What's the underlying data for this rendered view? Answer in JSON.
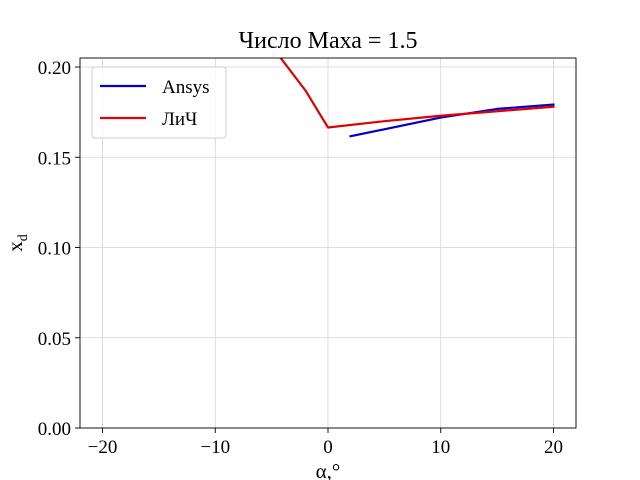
{
  "chart_data": {
    "type": "line",
    "title": "Число Маха = 1.5",
    "xlabel": "α,°",
    "ylabel": "x",
    "ylabel_subscript": "d",
    "xlim": [
      -22,
      22
    ],
    "ylim": [
      0.0,
      0.205
    ],
    "xticks": [
      -20,
      -10,
      0,
      10,
      20
    ],
    "yticks": [
      0.0,
      0.05,
      0.1,
      0.15,
      0.2
    ],
    "xtick_labels": [
      "−20",
      "−10",
      "0",
      "10",
      "20"
    ],
    "ytick_labels": [
      "0.00",
      "0.05",
      "0.10",
      "0.15",
      "0.20"
    ],
    "grid": true,
    "legend_position": "top-left",
    "series": [
      {
        "name": "Ansys",
        "color": "#0000cc",
        "x": [
          2,
          5,
          10,
          15,
          20
        ],
        "y": [
          0.1617,
          0.1655,
          0.172,
          0.1768,
          0.1792
        ]
      },
      {
        "name": "ЛиЧ",
        "color": "#e00000",
        "x": [
          -4.5,
          -2,
          0,
          5,
          10,
          15,
          20
        ],
        "y": [
          0.2075,
          0.187,
          0.1665,
          0.17,
          0.173,
          0.1755,
          0.178
        ]
      }
    ]
  }
}
